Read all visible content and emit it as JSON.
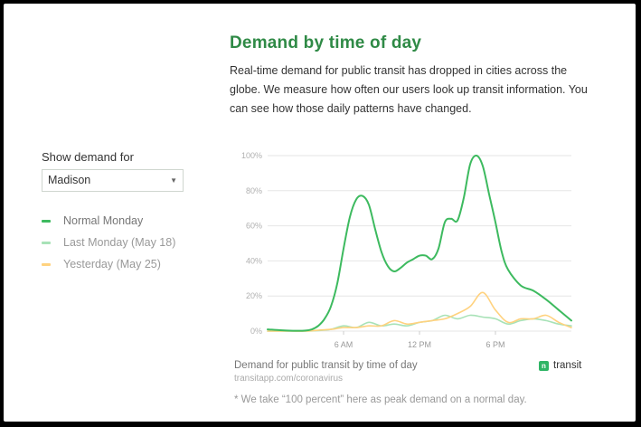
{
  "header": {
    "title": "Demand by time of day",
    "description": "Real-time demand for public transit has dropped in cities across the globe. We measure how often our users look up transit information. You can see how those daily patterns have changed."
  },
  "sidebar": {
    "show_label": "Show demand for",
    "city_select": {
      "value": "Madison"
    },
    "legend": [
      {
        "label": "Normal Monday",
        "color": "#3dba5f"
      },
      {
        "label": "Last Monday (May 18)",
        "color": "#a8e2b7"
      },
      {
        "label": "Yesterday (May 25)",
        "color": "#ffd27f"
      }
    ]
  },
  "chart_data": {
    "type": "line",
    "xlabel": "",
    "ylabel": "",
    "ylim": [
      0,
      100
    ],
    "xlim": [
      0,
      24
    ],
    "x_ticks": [
      {
        "value": 6,
        "label": "6 AM"
      },
      {
        "value": 12,
        "label": "12 PM"
      },
      {
        "value": 18,
        "label": "6 PM"
      }
    ],
    "y_ticks": [
      {
        "value": 0,
        "label": "0%"
      },
      {
        "value": 20,
        "label": "20%"
      },
      {
        "value": 40,
        "label": "40%"
      },
      {
        "value": 60,
        "label": "60%"
      },
      {
        "value": 80,
        "label": "80%"
      },
      {
        "value": 100,
        "label": "100%"
      }
    ],
    "grid": true,
    "series": [
      {
        "name": "Normal Monday",
        "color": "#3dba5f",
        "x": [
          0,
          1,
          2,
          3,
          3.5,
          4,
          4.5,
          5,
          5.5,
          6,
          6.5,
          7,
          7.5,
          8,
          8.5,
          9,
          9.5,
          10,
          10.5,
          11,
          11.5,
          12,
          12.5,
          13,
          13.5,
          14,
          14.5,
          15,
          15.5,
          16,
          16.5,
          17,
          17.5,
          18,
          18.5,
          19,
          20,
          21,
          22,
          23,
          24
        ],
        "y": [
          1,
          0.5,
          0.2,
          0.3,
          1,
          3,
          7,
          14,
          27,
          47,
          65,
          75,
          77,
          72,
          58,
          45,
          37,
          34,
          36,
          39,
          41,
          43,
          43,
          41,
          47,
          62,
          64,
          63,
          76,
          95,
          100,
          94,
          78,
          62,
          45,
          35,
          26,
          23,
          18,
          12,
          6
        ]
      },
      {
        "name": "Last Monday (May 18)",
        "color": "#a8e2b7",
        "x": [
          0,
          1,
          2,
          3,
          4,
          5,
          6,
          7,
          8,
          9,
          10,
          11,
          12,
          13,
          14,
          15,
          16,
          17,
          18,
          19,
          20,
          21,
          22,
          23,
          24
        ],
        "y": [
          0,
          0,
          0,
          0,
          0.3,
          1,
          3,
          2,
          5,
          3,
          4,
          3,
          5,
          6,
          9,
          7,
          9,
          8,
          7,
          4,
          6,
          7,
          6,
          4,
          3
        ]
      },
      {
        "name": "Yesterday (May 25)",
        "color": "#ffd27f",
        "x": [
          0,
          1,
          2,
          3,
          4,
          5,
          6,
          7,
          8,
          9,
          10,
          11,
          12,
          13,
          14,
          15,
          16,
          17,
          18,
          19,
          20,
          21,
          22,
          23,
          24
        ],
        "y": [
          0,
          0,
          0,
          0,
          0.5,
          1,
          2,
          2,
          3,
          3,
          6,
          4,
          5,
          6,
          7,
          10,
          14,
          22,
          12,
          5,
          7,
          7,
          9,
          5,
          2
        ]
      }
    ]
  },
  "footer": {
    "caption": "Demand for public transit by time of day",
    "source": "transitapp.com/coronavirus",
    "brand": "transit",
    "footnote": "* We take “100 percent” here as peak demand on a normal day."
  }
}
